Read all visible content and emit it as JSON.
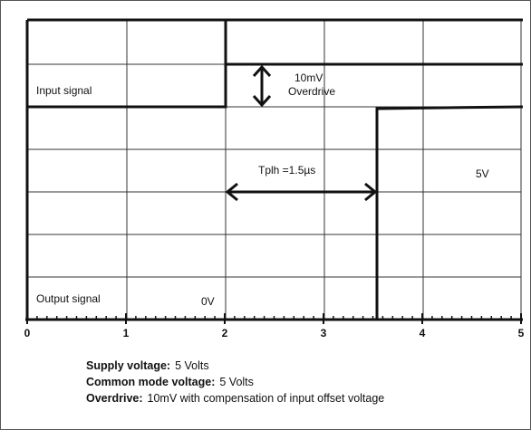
{
  "labels": {
    "input": "Input signal",
    "overdrive_value": "10mV",
    "overdrive": "Overdrive",
    "tplh": "Tplh =1.5µs",
    "high": "5V",
    "output": "Output signal",
    "low": "0V"
  },
  "x_axis": {
    "ticks": [
      0,
      1,
      2,
      3,
      4,
      5
    ]
  },
  "notes": [
    {
      "term": "Supply voltage:",
      "text": "5 Volts"
    },
    {
      "term": "Common mode voltage:",
      "text": "5 Volts"
    },
    {
      "term": "Overdrive:",
      "text": "10mV with compensation of input offset voltage"
    }
  ]
}
